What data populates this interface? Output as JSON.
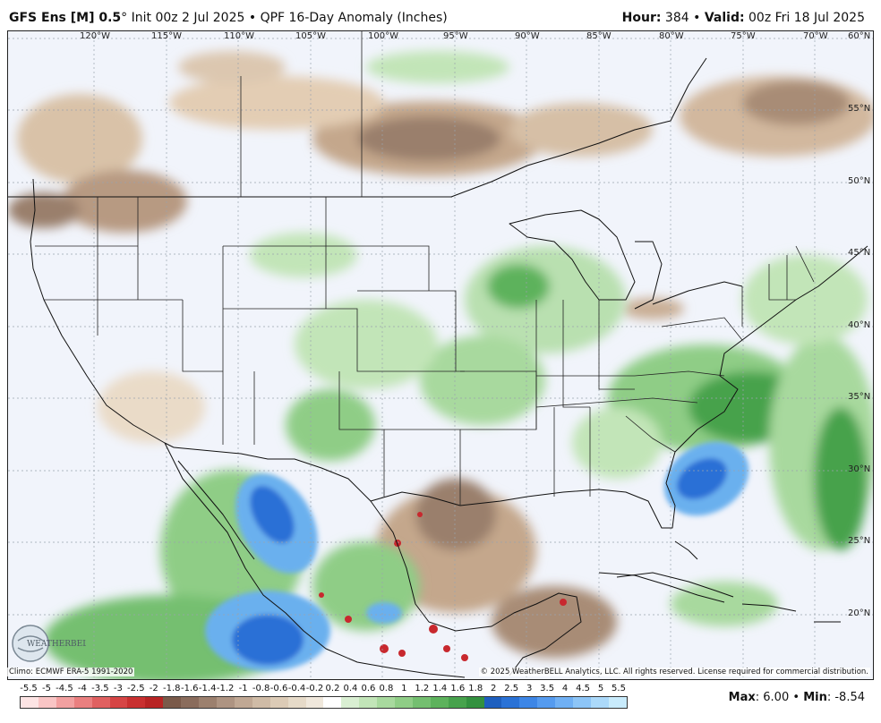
{
  "header": {
    "model": "GFS Ens [M] 0.5",
    "degree": "°",
    "init": "Init 00z 2 Jul 2025",
    "bullet": "•",
    "product": "QPF 16-Day Anomaly (Inches)",
    "hour_label": "Hour:",
    "hour_value": "384",
    "valid_label": "Valid:",
    "valid_value": "00z Fri 18 Jul 2025"
  },
  "map": {
    "longitude_labels": [
      "120°W",
      "115°W",
      "110°W",
      "105°W",
      "100°W",
      "95°W",
      "90°W",
      "85°W",
      "80°W",
      "75°W",
      "70°W"
    ],
    "latitude_labels": [
      "60°N",
      "55°N",
      "50°N",
      "45°N",
      "40°N",
      "35°N",
      "30°N",
      "25°N",
      "20°N"
    ],
    "colors": {
      "background": "#f1f4fb",
      "wet_light": "#b9e0b0",
      "wet_mid": "#7fcc80",
      "wet_dark": "#3ea357",
      "blue_light": "#6ab0ee",
      "blue_dark": "#2c6fd6",
      "dry_light": "#e8d4bd",
      "dry_mid": "#c4a78c",
      "dry_dark": "#8e7361",
      "red": "#c8282e"
    }
  },
  "footer": {
    "climo": "Climo: ECMWF ERA-5 1991-2020",
    "copyright": "© 2025 WeatherBELL Analytics, LLC. All rights reserved. License required for commercial distribution.",
    "logo_text": "WEATHERBELL",
    "max_label": "Max",
    "max_value": "6.00",
    "bullet": "•",
    "min_label": "Min",
    "min_value": "-8.54"
  },
  "colorbar": {
    "ticks": [
      "-5.5",
      "-5",
      "-4.5",
      "-4",
      "-3.5",
      "-3",
      "-2.5",
      "-2",
      "-1.8",
      "-1.6",
      "-1.4",
      "-1.2",
      "-1",
      "-0.8",
      "-0.6",
      "-0.4",
      "-0.2",
      "0.2",
      "0.4",
      "0.6",
      "0.8",
      "1",
      "1.2",
      "1.4",
      "1.6",
      "1.8",
      "2",
      "2.5",
      "3",
      "3.5",
      "4",
      "4.5",
      "5",
      "5.5"
    ],
    "colors": [
      "#fde4e4",
      "#f9c5c5",
      "#f2a0a0",
      "#ea7f7f",
      "#e06060",
      "#d64545",
      "#c93030",
      "#b82424",
      "#7a5a4a",
      "#8a6c5c",
      "#9c806e",
      "#ae9482",
      "#c0a894",
      "#cfbba6",
      "#dccbb6",
      "#e6dac8",
      "#f0e8dc",
      "#ffffff",
      "#d9efd2",
      "#c2e5b8",
      "#a8d99e",
      "#8fcd86",
      "#74bf70",
      "#5db25c",
      "#47a24c",
      "#33913f",
      "#1e5fbf",
      "#2a72d6",
      "#3d86e6",
      "#559bef",
      "#70b0f4",
      "#8dc5f7",
      "#abd9fa",
      "#c8ebfc"
    ]
  }
}
